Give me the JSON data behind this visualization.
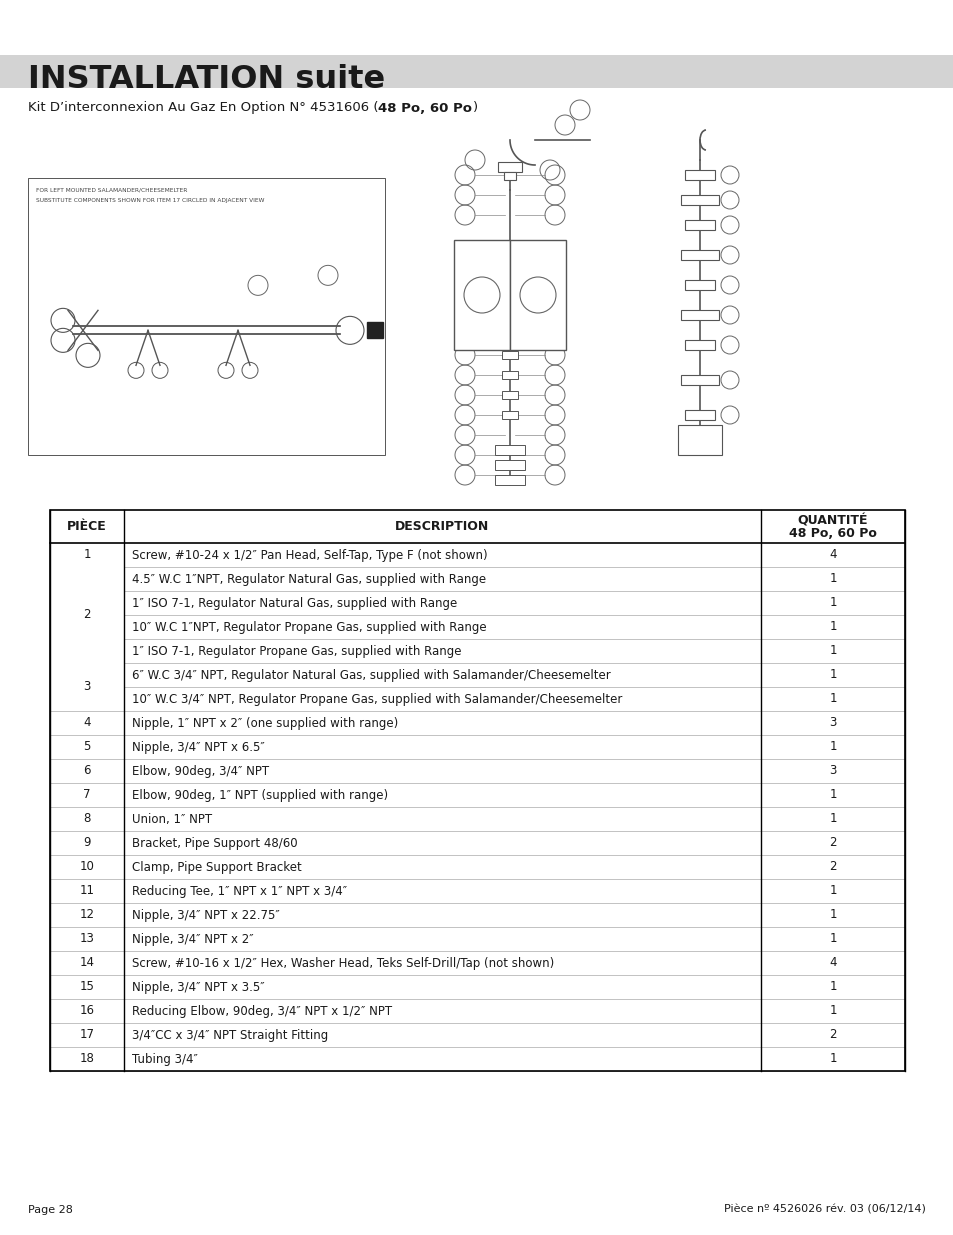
{
  "title": "INSTALLATION suite",
  "subtitle_prefix": "Kit D’interconnexion Au Gaz En Option N° 4531606 (",
  "subtitle_bold": "48 Po, 60 Po",
  "subtitle_suffix": ")",
  "page_footer_left": "Page 28",
  "page_footer_right": "Pièce nº 4526026 rév. 03 (06/12/14)",
  "col_header_piece": "PIÈCE",
  "col_header_desc": "DESCRIPTION",
  "col_header_qty1": "QUANTITÉ",
  "col_header_qty2": "48 Po, 60 Po",
  "table_rows": [
    [
      "1",
      "Screw, #10-24 x 1/2″ Pan Head, Self-Tap, Type F (not shown)",
      "4"
    ],
    [
      "",
      "4.5″ W.C 1″NPT, Regulator Natural Gas, supplied with Range",
      "1"
    ],
    [
      "",
      "1″ ISO 7-1, Regulator Natural Gas, supplied with Range",
      "1"
    ],
    [
      "2",
      "10″ W.C 1″NPT, Regulator Propane Gas, supplied with Range",
      "1"
    ],
    [
      "",
      "1″ ISO 7-1, Regulator Propane Gas, supplied with Range",
      "1"
    ],
    [
      "",
      "6″ W.C 3/4″ NPT, Regulator Natural Gas, supplied with Salamander/Cheesemelter",
      "1"
    ],
    [
      "3",
      "10″ W.C 3/4″ NPT, Regulator Propane Gas, supplied with Salamander/Cheesemelter",
      "1"
    ],
    [
      "4",
      "Nipple, 1″ NPT x 2″ (one supplied with range)",
      "3"
    ],
    [
      "5",
      "Nipple, 3/4″ NPT x 6.5″",
      "1"
    ],
    [
      "6",
      "Elbow, 90deg, 3/4″ NPT",
      "3"
    ],
    [
      "7",
      "Elbow, 90deg, 1″ NPT (supplied with range)",
      "1"
    ],
    [
      "8",
      "Union, 1″ NPT",
      "1"
    ],
    [
      "9",
      "Bracket, Pipe Support 48/60",
      "2"
    ],
    [
      "10",
      "Clamp, Pipe Support Bracket",
      "2"
    ],
    [
      "11",
      "Reducing Tee, 1″ NPT x 1″ NPT x 3/4″",
      "1"
    ],
    [
      "12",
      "Nipple, 3/4″ NPT x 22.75″",
      "1"
    ],
    [
      "13",
      "Nipple, 3/4″ NPT x 2″",
      "1"
    ],
    [
      "14",
      "Screw, #10-16 x 1/2″ Hex, Washer Head, Teks Self-Drill/Tap (not shown)",
      "4"
    ],
    [
      "15",
      "Nipple, 3/4″ NPT x 3.5″",
      "1"
    ],
    [
      "16",
      "Reducing Elbow, 90deg, 3/4″ NPT x 1/2″ NPT",
      "1"
    ],
    [
      "17",
      "3/4″CC x 3/4″ NPT Straight Fitting",
      "2"
    ],
    [
      "18",
      "Tubing 3/4″",
      "1"
    ]
  ],
  "span_groups": [
    {
      "piece": "2",
      "rows": [
        1,
        2,
        3,
        4
      ]
    },
    {
      "piece": "3",
      "rows": [
        5,
        6
      ]
    }
  ],
  "bg_color": "#ffffff",
  "title_bar_color": "#d3d3d3",
  "text_color": "#1a1a1a",
  "font_size_title": 23,
  "font_size_subtitle": 9.5,
  "font_size_table_header": 9,
  "font_size_table": 8.5,
  "font_size_footer": 8
}
